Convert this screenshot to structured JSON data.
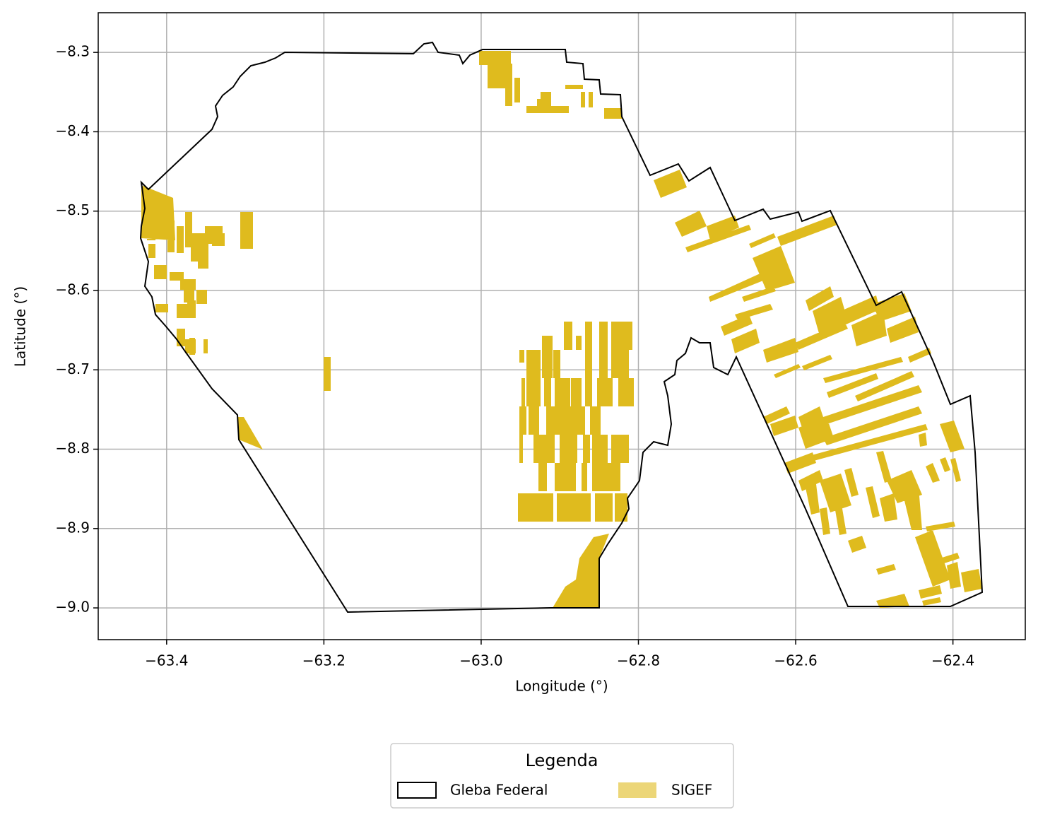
{
  "chart_data": {
    "type": "map",
    "xlabel": "Longitude (°)",
    "ylabel": "Latitude (°)",
    "xlim": [
      -63.487,
      -62.308
    ],
    "ylim": [
      -9.04,
      -8.25
    ],
    "xticks": [
      {
        "value": -63.4,
        "label": "−63.4"
      },
      {
        "value": -63.2,
        "label": "−63.2"
      },
      {
        "value": -63.0,
        "label": "−63.0"
      },
      {
        "value": -62.8,
        "label": "−62.8"
      },
      {
        "value": -62.6,
        "label": "−62.6"
      },
      {
        "value": -62.4,
        "label": "−62.4"
      }
    ],
    "yticks": [
      {
        "value": -8.3,
        "label": "−8.3"
      },
      {
        "value": -8.4,
        "label": "−8.4"
      },
      {
        "value": -8.5,
        "label": "−8.5"
      },
      {
        "value": -8.6,
        "label": "−8.6"
      },
      {
        "value": -8.7,
        "label": "−8.7"
      },
      {
        "value": -8.8,
        "label": "−8.8"
      },
      {
        "value": -8.9,
        "label": "−8.9"
      },
      {
        "value": -9.0,
        "label": "−9.0"
      }
    ],
    "grid": true,
    "legend": {
      "title": "Legenda",
      "position": "lower center",
      "entries": [
        {
          "name": "Gleba Federal",
          "color": "#000000"
        },
        {
          "name": "SIGEF",
          "color": "#dfbb1e"
        }
      ]
    }
  }
}
